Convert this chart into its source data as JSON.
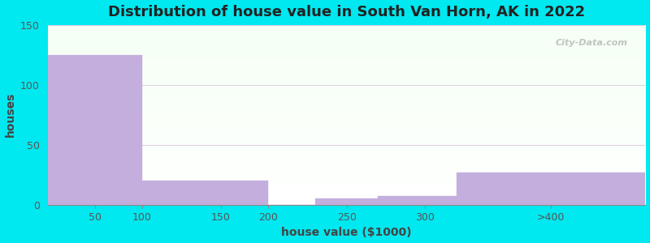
{
  "title": "Distribution of house value in South Van Horn, AK in 2022",
  "xlabel": "house value ($1000)",
  "ylabel": "houses",
  "bin_edges": [
    0,
    75,
    112.5,
    175,
    212.5,
    262.5,
    325,
    475
  ],
  "tick_positions": [
    37.5,
    75,
    137.5,
    175,
    237.5,
    300,
    400
  ],
  "tick_labels": [
    "50",
    "100",
    "150",
    "200",
    "250",
    "300",
    ">400"
  ],
  "values": [
    125,
    20,
    20,
    0,
    5,
    7,
    27
  ],
  "bar_color": "#c4aede",
  "bar_edgecolor": "#c4aede",
  "ylim": [
    0,
    150
  ],
  "yticks": [
    0,
    50,
    100,
    150
  ],
  "background_outer": "#00e8f0",
  "grid_color": "#e0d0e0",
  "title_fontsize": 13,
  "axis_label_fontsize": 10,
  "tick_fontsize": 9
}
